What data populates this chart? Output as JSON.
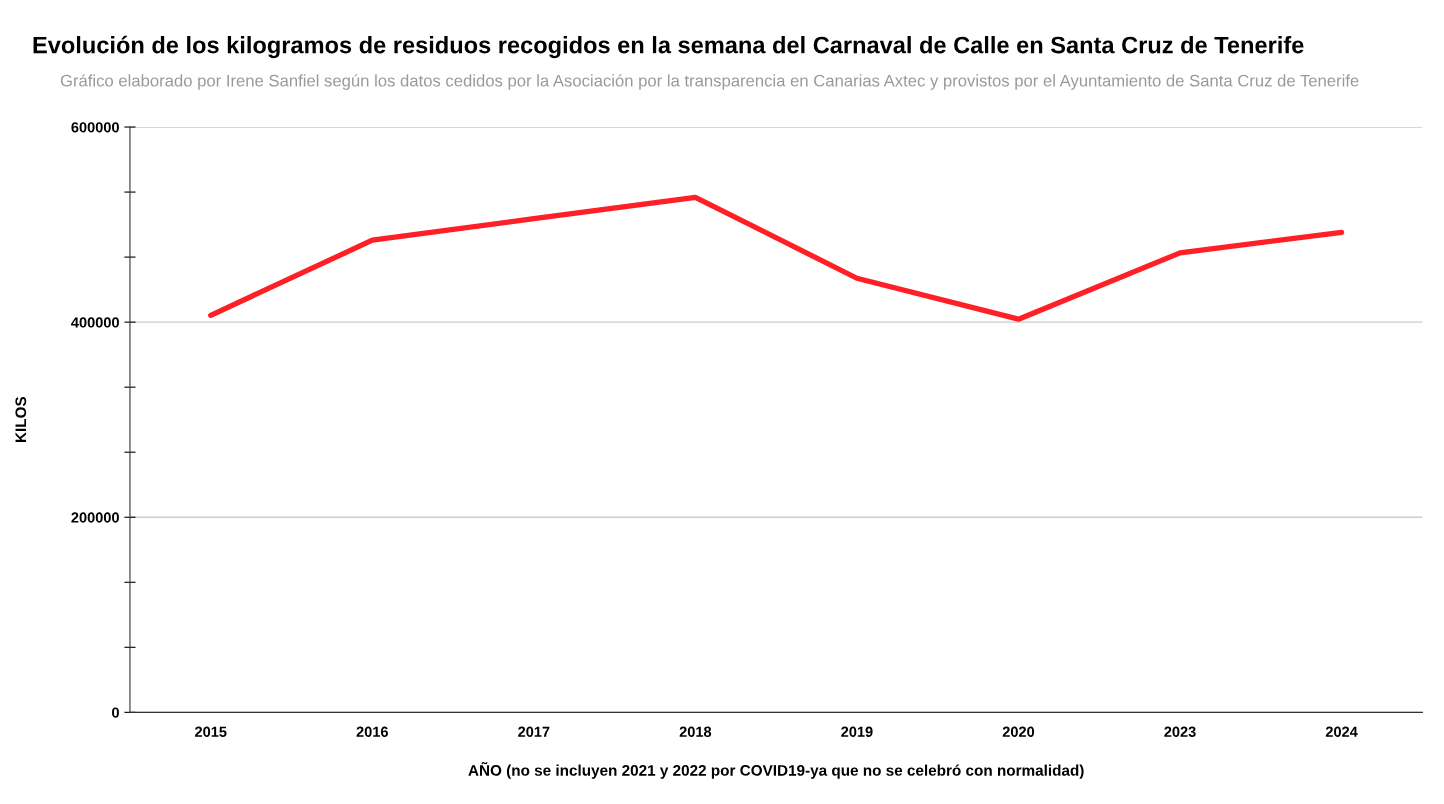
{
  "chart_data": {
    "type": "line",
    "title": "Evolución de los kilogramos de residuos recogidos en la semana del Carnaval de Calle en Santa Cruz de Tenerife",
    "subtitle": "Gráfico elaborado por Irene Sanfiel según los datos cedidos por la Asociación por la transparencia en Canarias Axtec y provistos por el Ayuntamiento de Santa Cruz de Tenerife",
    "xlabel": "AÑO (no se incluyen 2021 y 2022 por COVID19-ya que no se celebró con normalidad)",
    "ylabel": "KILOS",
    "categories": [
      "2015",
      "2016",
      "2017",
      "2018",
      "2019",
      "2020",
      "2023",
      "2024"
    ],
    "series": [
      {
        "color": "#ff1f26",
        "values": [
          407000,
          484000,
          506000,
          528000,
          445000,
          403000,
          471000,
          492000
        ]
      }
    ],
    "ylim": [
      0,
      600000
    ],
    "yticks": [
      0,
      {
        "value": 66667,
        "label": null
      },
      {
        "value": 133333,
        "label": null
      },
      200000,
      {
        "value": 266667,
        "label": null
      },
      {
        "value": 333333,
        "label": null
      },
      400000,
      {
        "value": 466667,
        "label": null
      },
      {
        "value": 533333,
        "label": null
      },
      600000
    ],
    "grid": "y",
    "marker": "none",
    "line_style": "solid"
  }
}
